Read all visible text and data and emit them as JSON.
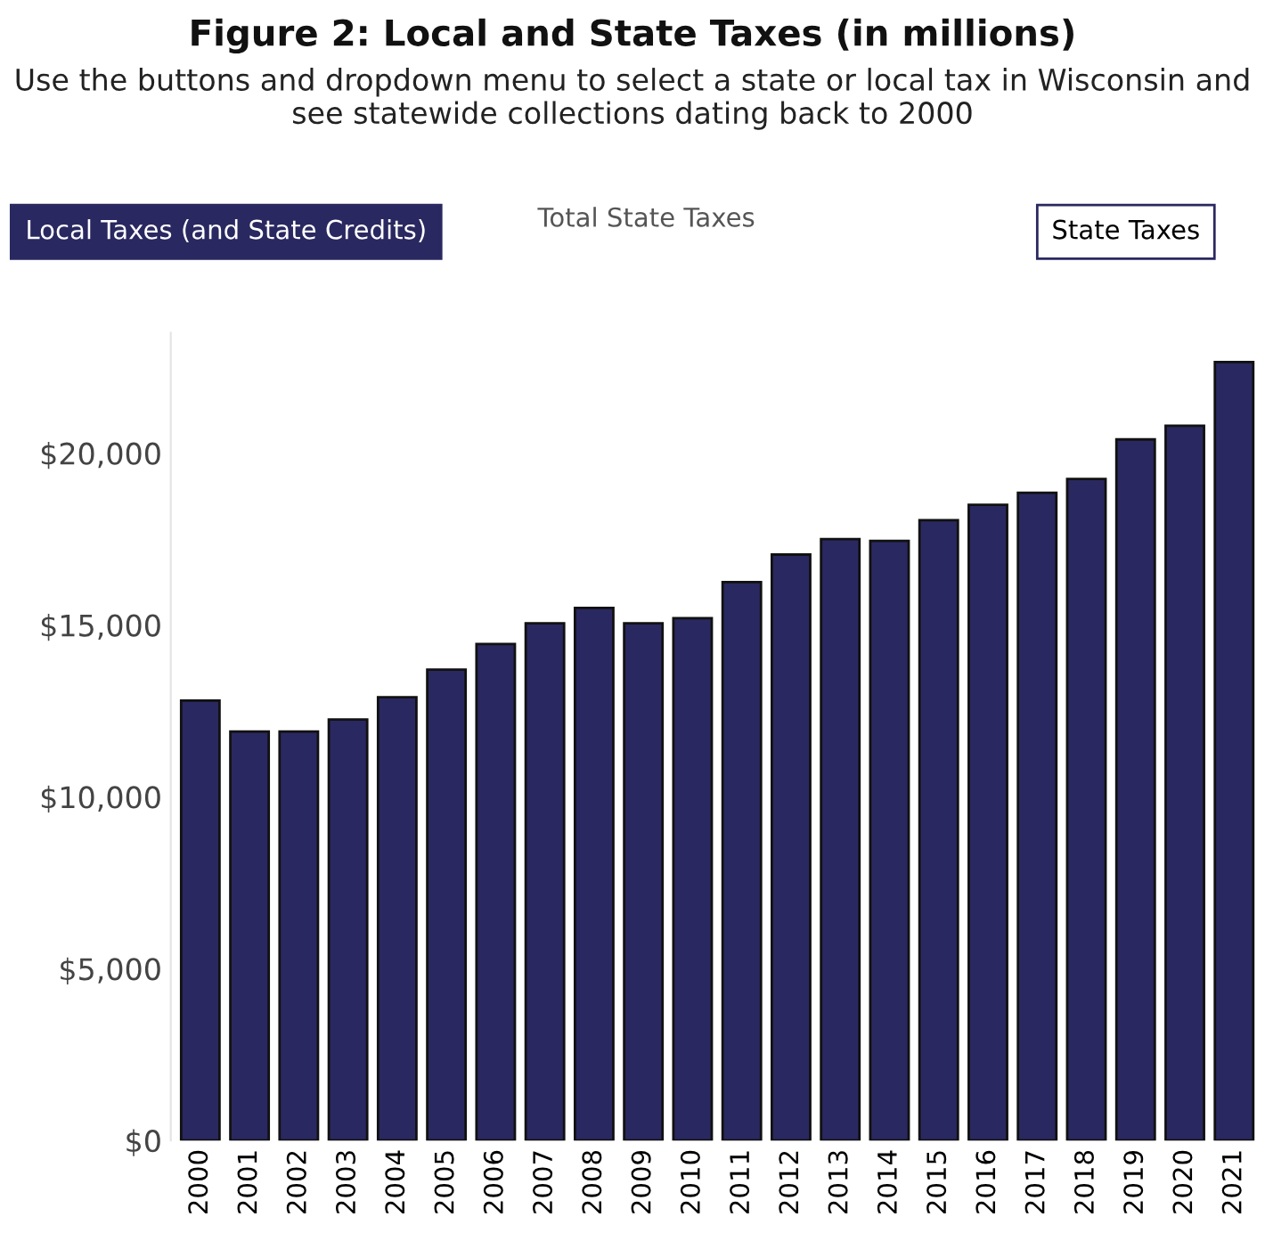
{
  "chart_data": {
    "type": "bar",
    "title": "Figure 2: Local and State Taxes (in millions)",
    "subtitle": "Use the buttons and dropdown menu to select a state or local tax in Wisconsin and see statewide collections dating back to 2000",
    "annotations": [
      "Local Taxes (and State Credits)",
      "Total State Taxes",
      "State Taxes"
    ],
    "categories": [
      "2000",
      "2001",
      "2002",
      "2003",
      "2004",
      "2005",
      "2006",
      "2007",
      "2008",
      "2009",
      "2010",
      "2011",
      "2012",
      "2013",
      "2014",
      "2015",
      "2016",
      "2017",
      "2018",
      "2019",
      "2020",
      "2021"
    ],
    "values": [
      12800,
      11900,
      11900,
      12250,
      12900,
      13700,
      14450,
      15050,
      15500,
      15050,
      15200,
      16250,
      17050,
      17500,
      17450,
      18050,
      18500,
      18850,
      19250,
      20400,
      20800,
      22650
    ],
    "color": "#2a2860",
    "ylim": [
      0,
      23500
    ],
    "yticks": [
      {
        "value": 0,
        "label": "$0"
      },
      {
        "value": 5000,
        "label": "$5,000"
      },
      {
        "value": 10000,
        "label": "$10,000"
      },
      {
        "value": 15000,
        "label": "$15,000"
      },
      {
        "value": 20000,
        "label": "$20,000"
      }
    ],
    "grid": false,
    "legend": false
  }
}
